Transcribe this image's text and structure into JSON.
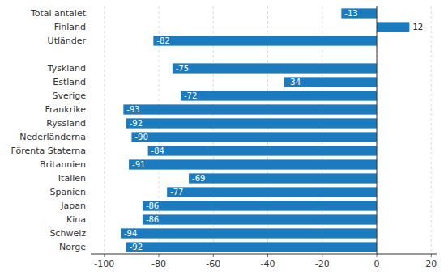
{
  "chart_data": {
    "type": "bar",
    "orientation": "horizontal",
    "categories": [
      "Norge",
      "Schweiz",
      "Kina",
      "Japan",
      "Spanien",
      "Italien",
      "Britannien",
      "Förenta Staterna",
      "Nederländerna",
      "Ryssland",
      "Frankrike",
      "Sverige",
      "Estland",
      "Tyskland",
      null,
      "Utländer",
      "Finland",
      "Total antalet"
    ],
    "values": [
      -92,
      -94,
      -86,
      -86,
      -77,
      -69,
      -91,
      -84,
      -90,
      -92,
      -93,
      -72,
      -34,
      -75,
      null,
      -82,
      12,
      -13
    ],
    "color": "#1c7abf",
    "xlim": [
      -105,
      22
    ],
    "xticks": [
      -100,
      -80,
      -60,
      -40,
      -20,
      0,
      20
    ],
    "grid": true,
    "data_labels": true
  }
}
